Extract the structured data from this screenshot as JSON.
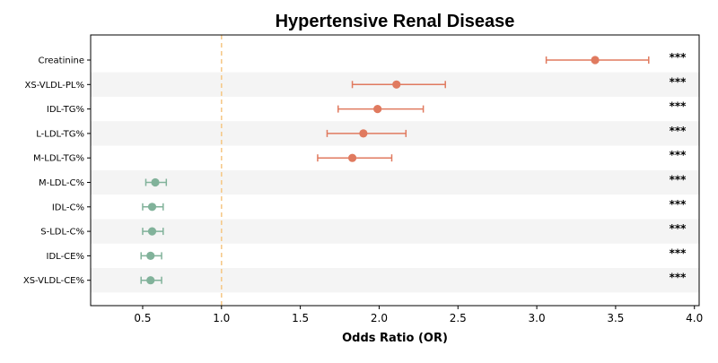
{
  "chart_data": {
    "type": "forest",
    "title": "Hypertensive Renal Disease",
    "xlabel": "Odds Ratio (OR)",
    "xlim": [
      0.17,
      4.03
    ],
    "x_ticks": [
      "0.5",
      "1.0",
      "1.5",
      "2.0",
      "2.5",
      "3.0",
      "3.5",
      "4.0"
    ],
    "reference_line": 1.0,
    "reference_color": "#f5c98a",
    "colors": {
      "risk": "#e07a5f",
      "protective": "#81b29a",
      "band": "#f4f4f4"
    },
    "rows": [
      {
        "label": "Creatinine",
        "or": 3.37,
        "lo": 3.06,
        "hi": 3.71,
        "sig": "***"
      },
      {
        "label": "XS-VLDL-PL%",
        "or": 2.11,
        "lo": 1.83,
        "hi": 2.42,
        "sig": "***"
      },
      {
        "label": "IDL-TG%",
        "or": 1.99,
        "lo": 1.74,
        "hi": 2.28,
        "sig": "***"
      },
      {
        "label": "L-LDL-TG%",
        "or": 1.9,
        "lo": 1.67,
        "hi": 2.17,
        "sig": "***"
      },
      {
        "label": "M-LDL-TG%",
        "or": 1.83,
        "lo": 1.61,
        "hi": 2.08,
        "sig": "***"
      },
      {
        "label": "M-LDL-C%",
        "or": 0.58,
        "lo": 0.52,
        "hi": 0.65,
        "sig": "***"
      },
      {
        "label": "IDL-C%",
        "or": 0.56,
        "lo": 0.5,
        "hi": 0.63,
        "sig": "***"
      },
      {
        "label": "S-LDL-C%",
        "or": 0.56,
        "lo": 0.5,
        "hi": 0.63,
        "sig": "***"
      },
      {
        "label": "IDL-CE%",
        "or": 0.55,
        "lo": 0.49,
        "hi": 0.62,
        "sig": "***"
      },
      {
        "label": "XS-VLDL-CE%",
        "or": 0.55,
        "lo": 0.49,
        "hi": 0.62,
        "sig": "***"
      }
    ]
  }
}
